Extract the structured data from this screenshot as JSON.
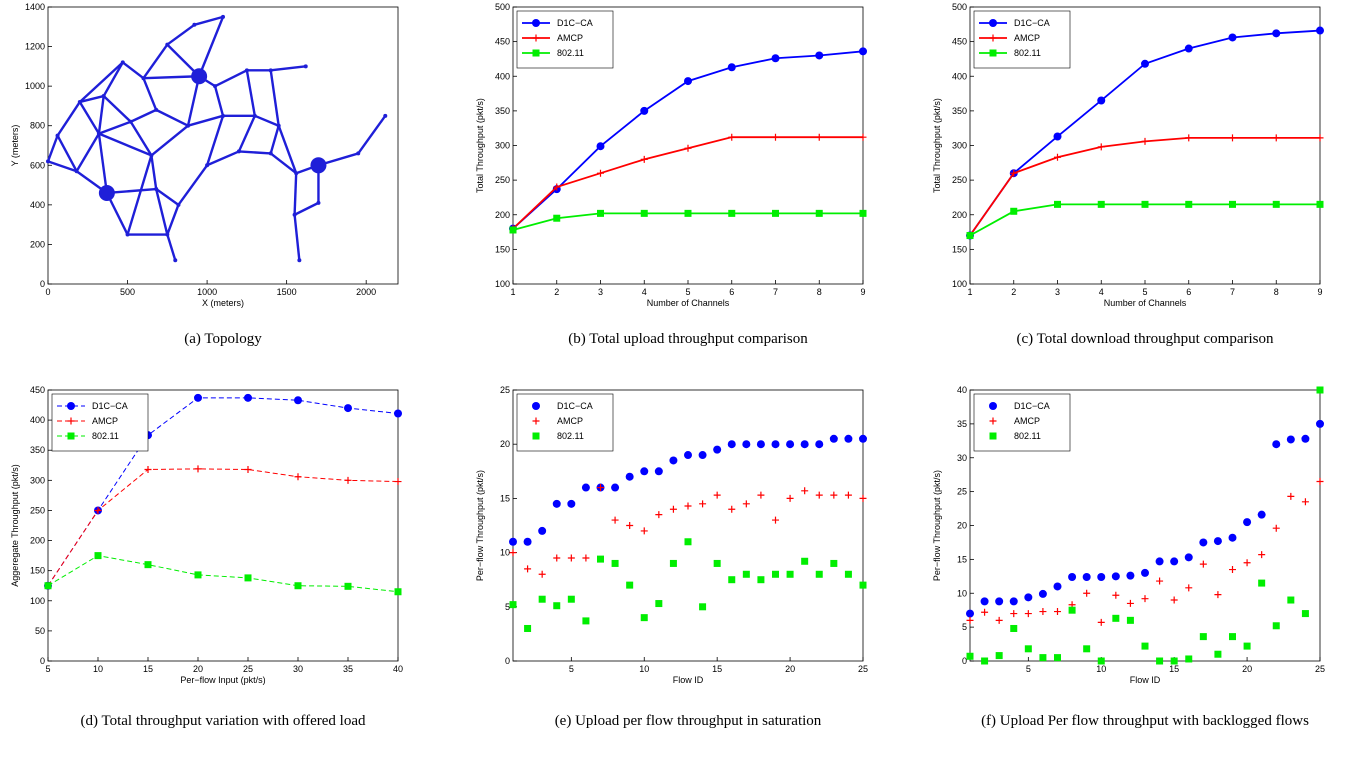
{
  "chart_data": [
    {
      "type": "network",
      "caption": "(a) Topology",
      "xlabel": "X (meters)",
      "ylabel": "Y (meters)",
      "xlim": [
        0,
        2200
      ],
      "ylim": [
        0,
        1400
      ],
      "xticks": [
        0,
        500,
        1000,
        1500,
        2000
      ],
      "yticks": [
        0,
        200,
        400,
        600,
        800,
        1000,
        1200,
        1400
      ],
      "color": "#1f1fd8",
      "x": [
        0,
        60,
        200,
        180,
        370,
        500,
        470,
        350,
        320,
        520,
        600,
        650,
        750,
        800,
        750,
        920,
        1100,
        950,
        880,
        680,
        820,
        1000,
        1100,
        1050,
        1250,
        1300,
        1200,
        1400,
        1620,
        1400,
        1560,
        1550,
        1700,
        1700,
        1580,
        1950,
        2120,
        680,
        1450
      ],
      "y": [
        620,
        750,
        920,
        570,
        460,
        250,
        1120,
        950,
        760,
        820,
        1040,
        650,
        250,
        120,
        1210,
        1310,
        1350,
        1050,
        800,
        480,
        400,
        600,
        850,
        1000,
        1080,
        850,
        670,
        1080,
        1100,
        660,
        560,
        350,
        600,
        410,
        120,
        660,
        850,
        880,
        800
      ],
      "gateways": [
        4,
        17,
        32
      ],
      "edges": [
        [
          0,
          1
        ],
        [
          0,
          3
        ],
        [
          1,
          2
        ],
        [
          1,
          3
        ],
        [
          2,
          7
        ],
        [
          2,
          8
        ],
        [
          3,
          4
        ],
        [
          3,
          8
        ],
        [
          4,
          5
        ],
        [
          4,
          8
        ],
        [
          4,
          19
        ],
        [
          5,
          12
        ],
        [
          5,
          11
        ],
        [
          6,
          7
        ],
        [
          6,
          10
        ],
        [
          7,
          9
        ],
        [
          8,
          9
        ],
        [
          9,
          11
        ],
        [
          9,
          37
        ],
        [
          10,
          37
        ],
        [
          10,
          14
        ],
        [
          14,
          15
        ],
        [
          15,
          16
        ],
        [
          16,
          17
        ],
        [
          14,
          17
        ],
        [
          10,
          17
        ],
        [
          17,
          23
        ],
        [
          17,
          18
        ],
        [
          18,
          37
        ],
        [
          18,
          22
        ],
        [
          18,
          11
        ],
        [
          11,
          19
        ],
        [
          19,
          20
        ],
        [
          20,
          12
        ],
        [
          12,
          13
        ],
        [
          19,
          12
        ],
        [
          20,
          21
        ],
        [
          21,
          22
        ],
        [
          21,
          26
        ],
        [
          22,
          23
        ],
        [
          22,
          25
        ],
        [
          23,
          24
        ],
        [
          24,
          27
        ],
        [
          27,
          28
        ],
        [
          25,
          26
        ],
        [
          25,
          38
        ],
        [
          24,
          25
        ],
        [
          26,
          29
        ],
        [
          29,
          30
        ],
        [
          38,
          30
        ],
        [
          30,
          32
        ],
        [
          30,
          31
        ],
        [
          31,
          33
        ],
        [
          32,
          33
        ],
        [
          32,
          35
        ],
        [
          35,
          36
        ],
        [
          31,
          34
        ],
        [
          29,
          38
        ],
        [
          27,
          38
        ],
        [
          7,
          8
        ],
        [
          8,
          11
        ],
        [
          2,
          6
        ]
      ]
    },
    {
      "type": "line",
      "caption": "(b) Total upload throughput comparison",
      "xlabel": "Number of Channels",
      "ylabel": "Total Throughput (pkt/s)",
      "xlim": [
        1,
        9
      ],
      "ylim": [
        100,
        500
      ],
      "xticks": [
        1,
        2,
        3,
        4,
        5,
        6,
        7,
        8,
        9
      ],
      "yticks": [
        100,
        150,
        200,
        250,
        300,
        350,
        400,
        450,
        500
      ],
      "legend": "upper left",
      "linestyle": "solid",
      "x": [
        1,
        2,
        3,
        4,
        5,
        6,
        7,
        8,
        9
      ],
      "series": [
        {
          "name": "D1C−CA",
          "color": "#0000ff",
          "marker": "o",
          "values": [
            180,
            237,
            299,
            350,
            393,
            413,
            426,
            430,
            436
          ]
        },
        {
          "name": "AMCP",
          "color": "#ff0000",
          "marker": "+",
          "values": [
            180,
            240,
            260,
            280,
            296,
            312,
            312,
            312,
            312
          ]
        },
        {
          "name": "802.11",
          "color": "#00ee00",
          "marker": "s",
          "values": [
            178,
            195,
            202,
            202,
            202,
            202,
            202,
            202,
            202
          ]
        }
      ]
    },
    {
      "type": "line",
      "caption": "(c) Total download throughput comparison",
      "xlabel": "Number of Channels",
      "ylabel": "Total Throughput (pkt/s)",
      "xlim": [
        1,
        9
      ],
      "ylim": [
        100,
        500
      ],
      "xticks": [
        1,
        2,
        3,
        4,
        5,
        6,
        7,
        8,
        9
      ],
      "yticks": [
        100,
        150,
        200,
        250,
        300,
        350,
        400,
        450,
        500
      ],
      "legend": "upper left",
      "linestyle": "solid",
      "x": [
        1,
        2,
        3,
        4,
        5,
        6,
        7,
        8,
        9
      ],
      "series": [
        {
          "name": "D1C−CA",
          "color": "#0000ff",
          "marker": "o",
          "values": [
            170,
            260,
            313,
            365,
            418,
            440,
            456,
            462,
            466
          ]
        },
        {
          "name": "AMCP",
          "color": "#ff0000",
          "marker": "+",
          "values": [
            170,
            260,
            283,
            298,
            306,
            311,
            311,
            311,
            311
          ]
        },
        {
          "name": "802.11",
          "color": "#00ee00",
          "marker": "s",
          "values": [
            170,
            205,
            215,
            215,
            215,
            215,
            215,
            215,
            215
          ]
        }
      ]
    },
    {
      "type": "line",
      "caption": "(d) Total throughput variation with offered load",
      "xlabel": "Per−flow Input (pkt/s)",
      "ylabel": "Aggeregate Throughput (pkt/s)",
      "xlim": [
        5,
        40
      ],
      "ylim": [
        0,
        450
      ],
      "xticks": [
        5,
        10,
        15,
        20,
        25,
        30,
        35,
        40
      ],
      "yticks": [
        0,
        50,
        100,
        150,
        200,
        250,
        300,
        350,
        400,
        450
      ],
      "legend": "upper left",
      "linestyle": "dashed",
      "x": [
        5,
        10,
        15,
        20,
        25,
        30,
        35,
        40
      ],
      "series": [
        {
          "name": "D1C−CA",
          "color": "#0000ff",
          "marker": "o",
          "values": [
            125,
            250,
            375,
            437,
            437,
            433,
            420,
            411
          ]
        },
        {
          "name": "AMCP",
          "color": "#ff0000",
          "marker": "+",
          "values": [
            125,
            250,
            318,
            319,
            318,
            306,
            300,
            298
          ]
        },
        {
          "name": "802.11",
          "color": "#00ee00",
          "marker": "s",
          "values": [
            125,
            175,
            160,
            143,
            138,
            125,
            124,
            115
          ]
        }
      ]
    },
    {
      "type": "scatter",
      "caption": "(e) Upload per flow throughput in saturation",
      "xlabel": "Flow ID",
      "ylabel": "Per−flow Throughput (pkt/s)",
      "xlim": [
        1,
        25
      ],
      "ylim": [
        0,
        25
      ],
      "xticks": [
        5,
        10,
        15,
        20,
        25
      ],
      "yticks": [
        0,
        5,
        10,
        15,
        20,
        25
      ],
      "legend": "upper left",
      "x": [
        1,
        2,
        3,
        4,
        5,
        6,
        7,
        8,
        9,
        10,
        11,
        12,
        13,
        14,
        15,
        16,
        17,
        18,
        19,
        20,
        21,
        22,
        23,
        24,
        25
      ],
      "series": [
        {
          "name": "D1C−CA",
          "color": "#0000ff",
          "marker": "o",
          "values": [
            11,
            11,
            12,
            14.5,
            14.5,
            16,
            16,
            16,
            17,
            17.5,
            17.5,
            18.5,
            19,
            19,
            19.5,
            20,
            20,
            20,
            20,
            20,
            20,
            20,
            20.5,
            20.5,
            20.5
          ]
        },
        {
          "name": "AMCP",
          "color": "#ff0000",
          "marker": "+",
          "values": [
            10,
            8.5,
            8,
            9.5,
            9.5,
            9.5,
            16,
            13,
            12.5,
            12,
            13.5,
            14,
            14.3,
            14.5,
            15.3,
            14,
            14.5,
            15.3,
            13,
            15,
            15.7,
            15.3,
            15.3,
            15.3,
            15
          ]
        },
        {
          "name": "802.11",
          "color": "#00ee00",
          "marker": "s",
          "values": [
            5.2,
            3,
            5.7,
            5.1,
            5.7,
            3.7,
            9.4,
            9,
            7,
            4,
            5.3,
            9,
            11,
            5,
            9,
            7.5,
            8,
            7.5,
            8,
            8,
            9.2,
            8,
            9,
            8,
            7
          ]
        }
      ]
    },
    {
      "type": "scatter",
      "caption": "(f) Upload Per flow throughput with backlogged flows",
      "xlabel": "Flow ID",
      "ylabel": "Per−flow Throughput (pkt/s)",
      "xlim": [
        1,
        25
      ],
      "ylim": [
        0,
        40
      ],
      "xticks": [
        5,
        10,
        15,
        20,
        25
      ],
      "yticks": [
        0,
        5,
        10,
        15,
        20,
        25,
        30,
        35,
        40
      ],
      "legend": "upper left",
      "x": [
        1,
        2,
        3,
        4,
        5,
        6,
        7,
        8,
        9,
        10,
        11,
        12,
        13,
        14,
        15,
        16,
        17,
        18,
        19,
        20,
        21,
        22,
        23,
        24,
        25
      ],
      "series": [
        {
          "name": "D1C−CA",
          "color": "#0000ff",
          "marker": "o",
          "values": [
            7,
            8.8,
            8.8,
            8.8,
            9.4,
            9.9,
            11,
            12.4,
            12.4,
            12.4,
            12.5,
            12.6,
            13,
            14.7,
            14.7,
            15.3,
            17.5,
            17.7,
            18.2,
            20.5,
            21.6,
            32,
            32.7,
            32.8,
            35
          ]
        },
        {
          "name": "AMCP",
          "color": "#ff0000",
          "marker": "+",
          "values": [
            6,
            7.2,
            6,
            7,
            7,
            7.3,
            7.3,
            8.3,
            10,
            5.7,
            9.7,
            8.5,
            9.2,
            11.8,
            9,
            10.8,
            14.3,
            9.8,
            13.5,
            14.5,
            15.7,
            19.6,
            24.3,
            23.5,
            26.5
          ]
        },
        {
          "name": "802.11",
          "color": "#00ee00",
          "marker": "s",
          "values": [
            0.7,
            0,
            0.8,
            4.8,
            1.8,
            0.5,
            0.5,
            7.5,
            1.8,
            0,
            6.3,
            6,
            2.2,
            0,
            0,
            0.3,
            3.6,
            1,
            3.6,
            2.2,
            11.5,
            5.2,
            9,
            7,
            40
          ]
        }
      ]
    }
  ]
}
